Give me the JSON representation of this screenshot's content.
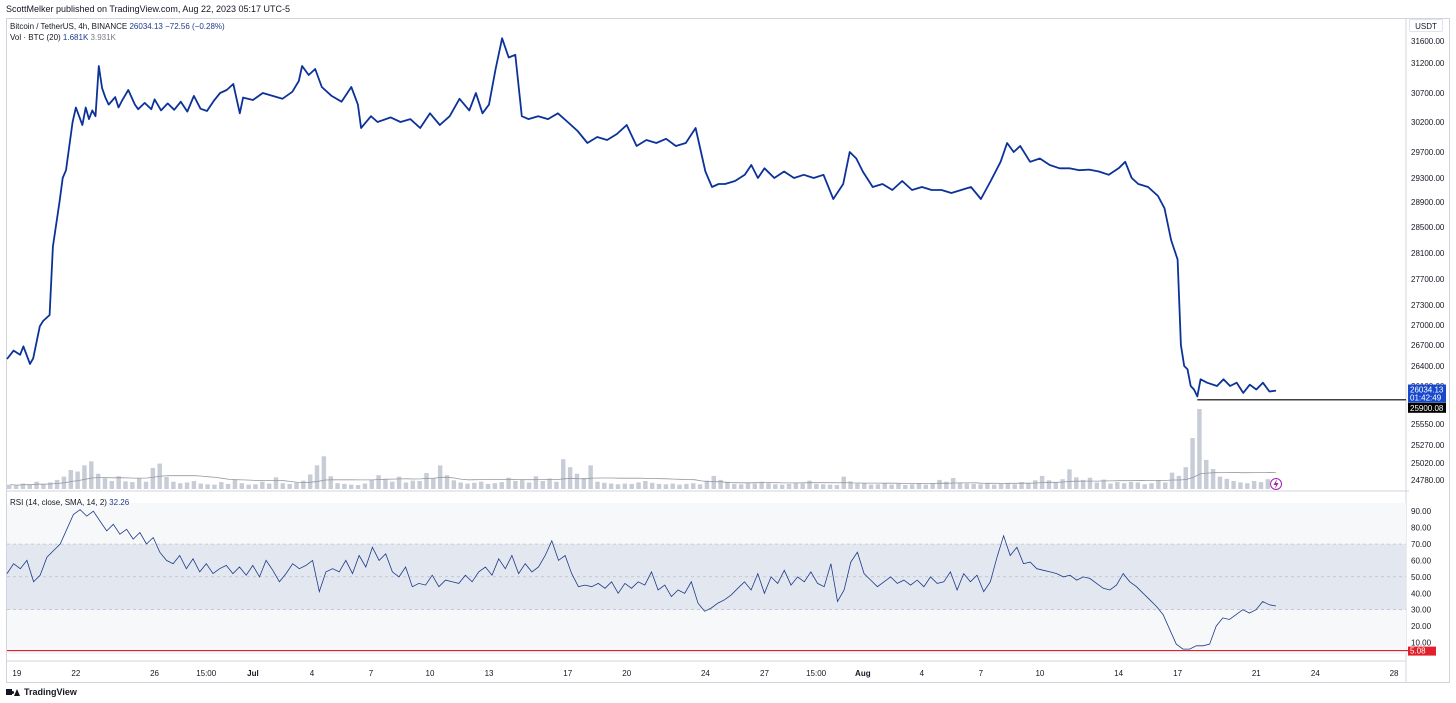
{
  "header": {
    "published": "ScottMelker published on TradingView.com, Aug 22, 2023 05:17 UTC-5"
  },
  "legend": {
    "symbol": "Bitcoin / TetherUS, 4h, BINANCE",
    "last_price": "26034.13",
    "change": "−72.56 (−0.28%)",
    "vol_label": "Vol · BTC (20)",
    "vol_value": "1.681K",
    "vol_ma": "3.931K",
    "rsi_label": "RSI (14, close, SMA, 14, 2)",
    "rsi_value": "32.26"
  },
  "currency_button": "USDT",
  "footer": {
    "brand": "TradingView"
  },
  "colors": {
    "price_line": "#0c3299",
    "price_label_bg": "#1848cc",
    "horizontal_line": "#000000",
    "volume_bar": "#c7ccd6",
    "volume_ma": "#9598a1",
    "rsi_line": "#1e3a8a",
    "rsi_band": "#e3e8f0",
    "rsi_bottom_line": "#e0212b",
    "background": "#ffffff"
  },
  "chart_data": {
    "type": "line",
    "title": "Bitcoin / TetherUS, 4h, BINANCE",
    "price_axis": {
      "ticks": [
        31600,
        31200,
        30700,
        30200,
        29700,
        29300,
        28900,
        28500,
        28100,
        27700,
        27300,
        27000,
        26700,
        26400,
        26100,
        25550,
        25270,
        25020,
        24780
      ],
      "tick_labels": [
        "31600.00",
        "31200.00",
        "30700.00",
        "30200.00",
        "29700.00",
        "29300.00",
        "28900.00",
        "28500.00",
        "28100.00",
        "27700.00",
        "27300.00",
        "27000.00",
        "26700.00",
        "26400.00",
        "26100.00",
        "25550.00",
        "25270.00",
        "25020.00",
        "24780.00"
      ]
    },
    "x_axis": {
      "tick_labels": [
        "19",
        "22",
        "26",
        "15:00",
        "Jul",
        "4",
        "7",
        "10",
        "13",
        "17",
        "20",
        "24",
        "27",
        "15:00",
        "Aug",
        "4",
        "7",
        "10",
        "14",
        "17",
        "21",
        "24",
        "28"
      ],
      "bold_labels": [
        "Jul",
        "Aug"
      ]
    },
    "series": [
      {
        "name": "Bitcoin / TetherUS",
        "points": [
          [
            "Jun 18 12:00",
            26500
          ],
          [
            "Jun 18 20:00",
            26620
          ],
          [
            "Jun 19 04:00",
            26560
          ],
          [
            "Jun 19 08:00",
            26680
          ],
          [
            "Jun 19 16:00",
            26430
          ],
          [
            "Jun 19 20:00",
            26510
          ],
          [
            "Jun 20 04:00",
            26980
          ],
          [
            "Jun 20 08:00",
            27060
          ],
          [
            "Jun 20 16:00",
            27150
          ],
          [
            "Jun 20 20:00",
            28200
          ],
          [
            "Jun 21 04:00",
            28900
          ],
          [
            "Jun 21 08:00",
            29300
          ],
          [
            "Jun 21 12:00",
            29420
          ],
          [
            "Jun 21 20:00",
            30200
          ],
          [
            "Jun 22 00:00",
            30450
          ],
          [
            "Jun 22 04:00",
            30300
          ],
          [
            "Jun 22 08:00",
            30150
          ],
          [
            "Jun 22 12:00",
            30450
          ],
          [
            "Jun 22 16:00",
            30250
          ],
          [
            "Jun 22 20:00",
            30400
          ],
          [
            "Jun 23 00:00",
            30300
          ],
          [
            "Jun 23 04:00",
            31150
          ],
          [
            "Jun 23 08:00",
            30780
          ],
          [
            "Jun 23 12:00",
            30620
          ],
          [
            "Jun 23 16:00",
            30500
          ],
          [
            "Jun 24 00:00",
            30630
          ],
          [
            "Jun 24 04:00",
            30450
          ],
          [
            "Jun 24 08:00",
            30560
          ],
          [
            "Jun 24 16:00",
            30750
          ],
          [
            "Jun 25 00:00",
            30500
          ],
          [
            "Jun 25 04:00",
            30420
          ],
          [
            "Jun 25 12:00",
            30530
          ],
          [
            "Jun 25 20:00",
            30420
          ],
          [
            "Jun 26 00:00",
            30590
          ],
          [
            "Jun 26 08:00",
            30400
          ],
          [
            "Jun 26 16:00",
            30520
          ],
          [
            "Jun 27 00:00",
            30410
          ],
          [
            "Jun 27 08:00",
            30550
          ],
          [
            "Jun 27 16:00",
            30380
          ],
          [
            "Jun 28 00:00",
            30650
          ],
          [
            "Jun 28 08:00",
            30430
          ],
          [
            "Jun 28 16:00",
            30390
          ],
          [
            "Jun 29 00:00",
            30560
          ],
          [
            "Jun 29 08:00",
            30700
          ],
          [
            "Jun 29 16:00",
            30750
          ],
          [
            "Jun 30 00:00",
            30850
          ],
          [
            "Jun 30 08:00",
            30350
          ],
          [
            "Jun 30 12:00",
            30620
          ],
          [
            "Jul 1 00:00",
            30580
          ],
          [
            "Jul 1 12:00",
            30700
          ],
          [
            "Jul 2 00:00",
            30650
          ],
          [
            "Jul 2 12:00",
            30600
          ],
          [
            "Jul 3 00:00",
            30720
          ],
          [
            "Jul 3 08:00",
            30900
          ],
          [
            "Jul 3 12:00",
            31150
          ],
          [
            "Jul 3 20:00",
            31000
          ],
          [
            "Jul 4 04:00",
            31100
          ],
          [
            "Jul 4 12:00",
            30800
          ],
          [
            "Jul 5 00:00",
            30650
          ],
          [
            "Jul 5 12:00",
            30550
          ],
          [
            "Jul 6 00:00",
            30800
          ],
          [
            "Jul 6 08:00",
            30500
          ],
          [
            "Jul 6 12:00",
            30100
          ],
          [
            "Jul 7 00:00",
            30300
          ],
          [
            "Jul 7 08:00",
            30200
          ],
          [
            "Jul 8 00:00",
            30280
          ],
          [
            "Jul 8 12:00",
            30200
          ],
          [
            "Jul 9 00:00",
            30250
          ],
          [
            "Jul 9 12:00",
            30100
          ],
          [
            "Jul 10 00:00",
            30350
          ],
          [
            "Jul 10 12:00",
            30150
          ],
          [
            "Jul 11 00:00",
            30300
          ],
          [
            "Jul 11 12:00",
            30600
          ],
          [
            "Jul 12 00:00",
            30400
          ],
          [
            "Jul 12 08:00",
            30700
          ],
          [
            "Jul 12 16:00",
            30350
          ],
          [
            "Jul 13 00:00",
            30500
          ],
          [
            "Jul 13 08:00",
            31100
          ],
          [
            "Jul 13 16:00",
            31650
          ],
          [
            "Jul 14 00:00",
            31300
          ],
          [
            "Jul 14 08:00",
            31350
          ],
          [
            "Jul 14 16:00",
            30300
          ],
          [
            "Jul 15 00:00",
            30250
          ],
          [
            "Jul 15 12:00",
            30300
          ],
          [
            "Jul 16 00:00",
            30250
          ],
          [
            "Jul 16 12:00",
            30350
          ],
          [
            "Jul 17 00:00",
            30200
          ],
          [
            "Jul 17 12:00",
            30050
          ],
          [
            "Jul 18 00:00",
            29850
          ],
          [
            "Jul 18 12:00",
            29950
          ],
          [
            "Jul 19 00:00",
            29900
          ],
          [
            "Jul 19 12:00",
            30000
          ],
          [
            "Jul 20 00:00",
            30150
          ],
          [
            "Jul 20 12:00",
            29800
          ],
          [
            "Jul 21 00:00",
            29900
          ],
          [
            "Jul 21 12:00",
            29850
          ],
          [
            "Jul 22 00:00",
            29920
          ],
          [
            "Jul 22 12:00",
            29800
          ],
          [
            "Jul 23 00:00",
            29850
          ],
          [
            "Jul 23 12:00",
            30100
          ],
          [
            "Jul 24 00:00",
            29400
          ],
          [
            "Jul 24 08:00",
            29150
          ],
          [
            "Jul 24 16:00",
            29200
          ],
          [
            "Jul 25 00:00",
            29200
          ],
          [
            "Jul 25 12:00",
            29250
          ],
          [
            "Jul 26 00:00",
            29350
          ],
          [
            "Jul 26 08:00",
            29500
          ],
          [
            "Jul 26 16:00",
            29300
          ],
          [
            "Jul 27 00:00",
            29450
          ],
          [
            "Jul 27 12:00",
            29300
          ],
          [
            "Jul 28 00:00",
            29400
          ],
          [
            "Jul 28 12:00",
            29300
          ],
          [
            "Jul 29 00:00",
            29350
          ],
          [
            "Jul 29 12:00",
            29300
          ],
          [
            "Jul 30 00:00",
            29350
          ],
          [
            "Jul 30 12:00",
            28950
          ],
          [
            "Jul 31 00:00",
            29200
          ],
          [
            "Jul 31 08:00",
            29700
          ],
          [
            "Jul 31 16:00",
            29600
          ],
          [
            "Aug 1 00:00",
            29400
          ],
          [
            "Aug 1 12:00",
            29150
          ],
          [
            "Aug 2 00:00",
            29200
          ],
          [
            "Aug 2 12:00",
            29100
          ],
          [
            "Aug 3 00:00",
            29250
          ],
          [
            "Aug 3 12:00",
            29100
          ],
          [
            "Aug 4 00:00",
            29150
          ],
          [
            "Aug 4 12:00",
            29100
          ],
          [
            "Aug 5 00:00",
            29100
          ],
          [
            "Aug 5 12:00",
            29050
          ],
          [
            "Aug 6 00:00",
            29100
          ],
          [
            "Aug 6 12:00",
            29150
          ],
          [
            "Aug 7 00:00",
            28950
          ],
          [
            "Aug 7 12:00",
            29250
          ],
          [
            "Aug 8 00:00",
            29550
          ],
          [
            "Aug 8 08:00",
            29850
          ],
          [
            "Aug 8 16:00",
            29700
          ],
          [
            "Aug 9 00:00",
            29800
          ],
          [
            "Aug 9 12:00",
            29550
          ],
          [
            "Aug 10 00:00",
            29600
          ],
          [
            "Aug 10 12:00",
            29500
          ],
          [
            "Aug 11 00:00",
            29450
          ],
          [
            "Aug 11 12:00",
            29450
          ],
          [
            "Aug 12 00:00",
            29420
          ],
          [
            "Aug 12 12:00",
            29430
          ],
          [
            "Aug 13 00:00",
            29400
          ],
          [
            "Aug 13 12:00",
            29350
          ],
          [
            "Aug 14 00:00",
            29450
          ],
          [
            "Aug 14 08:00",
            29550
          ],
          [
            "Aug 14 16:00",
            29300
          ],
          [
            "Aug 15 00:00",
            29200
          ],
          [
            "Aug 15 12:00",
            29150
          ],
          [
            "Aug 16 00:00",
            29000
          ],
          [
            "Aug 16 08:00",
            28800
          ],
          [
            "Aug 16 16:00",
            28300
          ],
          [
            "Aug 17 00:00",
            28000
          ],
          [
            "Aug 17 04:00",
            26700
          ],
          [
            "Aug 17 08:00",
            26400
          ],
          [
            "Aug 17 12:00",
            26350
          ],
          [
            "Aug 17 16:00",
            26100
          ],
          [
            "Aug 17 20:00",
            26050
          ],
          [
            "Aug 18 00:00",
            25950
          ],
          [
            "Aug 18 04:00",
            26200
          ],
          [
            "Aug 18 12:00",
            26150
          ],
          [
            "Aug 19 00:00",
            26100
          ],
          [
            "Aug 19 08:00",
            26200
          ],
          [
            "Aug 19 16:00",
            26100
          ],
          [
            "Aug 20 00:00",
            26150
          ],
          [
            "Aug 20 08:00",
            26000
          ],
          [
            "Aug 20 16:00",
            26120
          ],
          [
            "Aug 21 00:00",
            26050
          ],
          [
            "Aug 21 08:00",
            26150
          ],
          [
            "Aug 21 16:00",
            26020
          ],
          [
            "Aug 22 00:00",
            26034.13
          ]
        ]
      }
    ],
    "horizontal_line": {
      "value": 25900.08,
      "label": "25900.08",
      "from": "Aug 18 00:00"
    },
    "price_tag": {
      "price": "26034.13",
      "countdown": "01:42:49"
    },
    "volume": {
      "bars": [
        1.2,
        0.9,
        1.5,
        1.1,
        2.0,
        1.3,
        1.8,
        2.5,
        3.4,
        5.2,
        4.8,
        6.5,
        7.6,
        4.2,
        3.0,
        2.2,
        3.5,
        2.1,
        1.9,
        3.0,
        2.0,
        5.8,
        7.0,
        3.3,
        2.0,
        1.6,
        1.8,
        2.2,
        1.5,
        1.3,
        1.2,
        1.9,
        1.4,
        2.5,
        1.6,
        1.2,
        1.3,
        2.0,
        1.5,
        3.2,
        1.6,
        1.4,
        1.7,
        2.3,
        4.0,
        6.5,
        9.0,
        3.5,
        1.6,
        1.4,
        1.2,
        1.1,
        1.5,
        2.5,
        3.8,
        2.6,
        2.0,
        3.4,
        1.8,
        2.3,
        2.2,
        4.4,
        3.0,
        6.5,
        3.8,
        2.4,
        1.8,
        1.5,
        1.7,
        2.0,
        1.4,
        1.6,
        1.9,
        3.1,
        2.2,
        2.6,
        1.8,
        3.5,
        2.2,
        2.9,
        2.0,
        8.2,
        6.0,
        4.2,
        3.0,
        6.5,
        2.0,
        1.7,
        1.5,
        1.3,
        1.5,
        1.4,
        1.8,
        2.2,
        1.7,
        1.4,
        1.3,
        1.5,
        1.2,
        1.4,
        1.6,
        1.3,
        2.3,
        3.6,
        2.5,
        2.0,
        1.4,
        1.3,
        1.6,
        1.5,
        2.0,
        1.6,
        1.3,
        1.2,
        1.4,
        1.7,
        1.5,
        2.3,
        1.4,
        1.3,
        1.2,
        1.1,
        3.4,
        2.1,
        1.5,
        1.6,
        1.2,
        1.3,
        1.5,
        1.2,
        1.4,
        1.1,
        1.3,
        1.5,
        1.2,
        1.6,
        2.5,
        2.0,
        3.0,
        1.8,
        1.5,
        1.4,
        1.3,
        1.6,
        1.2,
        1.4,
        1.5,
        1.3,
        1.9,
        1.6,
        2.4,
        3.6,
        2.4,
        1.8,
        2.7,
        5.4,
        3.2,
        2.5,
        3.1,
        1.8,
        2.6,
        1.5,
        1.9,
        1.6,
        2.0,
        1.8,
        1.3,
        1.6,
        2.4,
        1.8,
        4.5,
        3.6,
        6.0,
        14.0,
        22.0,
        8.0,
        5.5,
        3.4,
        2.8,
        2.2,
        1.8,
        1.6,
        2.2,
        1.9,
        2.7,
        1.681
      ]
    },
    "rsi": {
      "y_axis_ticks": [
        90,
        80,
        70,
        60,
        50,
        40,
        30,
        20,
        10
      ],
      "y_axis_labels": [
        "90.00",
        "80.00",
        "70.00",
        "60.00",
        "50.00",
        "40.00",
        "30.00",
        "20.00",
        "10.00"
      ],
      "band": [
        30,
        70
      ],
      "mid": 50,
      "bottom_line": {
        "value": 5.08,
        "label": "5.08"
      },
      "values": [
        52,
        58,
        55,
        60,
        47,
        51,
        62,
        66,
        70,
        79,
        88,
        91,
        87,
        90,
        84,
        78,
        82,
        76,
        79,
        73,
        77,
        70,
        74,
        65,
        60,
        58,
        63,
        55,
        61,
        53,
        58,
        52,
        55,
        57,
        52,
        56,
        51,
        57,
        50,
        60,
        54,
        47,
        52,
        58,
        55,
        57,
        60,
        41,
        53,
        55,
        53,
        60,
        52,
        63,
        56,
        68,
        60,
        64,
        53,
        50,
        56,
        44,
        46,
        45,
        51,
        44,
        48,
        47,
        46,
        51,
        47,
        53,
        56,
        51,
        61,
        55,
        63,
        52,
        58,
        53,
        56,
        63,
        72,
        60,
        63,
        52,
        44,
        45,
        44,
        46,
        43,
        47,
        40,
        46,
        43,
        47,
        45,
        53,
        42,
        45,
        38,
        42,
        40,
        47,
        34,
        29,
        31,
        34,
        36,
        39,
        43,
        47,
        42,
        52,
        40,
        50,
        46,
        54,
        45,
        50,
        47,
        53,
        46,
        44,
        58,
        35,
        42,
        59,
        65,
        52,
        48,
        44,
        47,
        50,
        46,
        48,
        45,
        48,
        44,
        50,
        46,
        47,
        53,
        42,
        52,
        47,
        51,
        41,
        47,
        62,
        75,
        63,
        68,
        58,
        59,
        55,
        54,
        53,
        52,
        50,
        51,
        48,
        50,
        49,
        46,
        43,
        42,
        45,
        52,
        47,
        44,
        40,
        36,
        32,
        27,
        18,
        9,
        6,
        6,
        8,
        8,
        9,
        20,
        25,
        24,
        27,
        30,
        28,
        30,
        35,
        33,
        32.26
      ]
    }
  }
}
